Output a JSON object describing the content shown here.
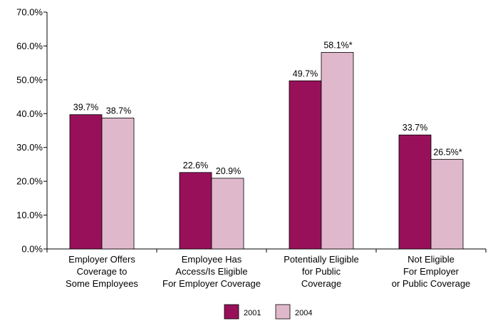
{
  "chart_data": {
    "type": "bar",
    "title": "",
    "xlabel": "",
    "ylabel": "",
    "ylim": [
      0,
      70
    ],
    "yticks": [
      0,
      10,
      20,
      30,
      40,
      50,
      60,
      70
    ],
    "ytick_labels": [
      "0.0%",
      "10.0%",
      "20.0%",
      "30.0%",
      "40.0%",
      "50.0%",
      "60.0%",
      "70.0%"
    ],
    "grid": false,
    "legend_position": "bottom-center",
    "categories": [
      [
        "Employer Offers",
        "Coverage to",
        "Some Employees"
      ],
      [
        "Employee Has",
        "Access/Is Eligible",
        "For Employer Coverage"
      ],
      [
        "Potentially Eligible",
        "for Public",
        "Coverage"
      ],
      [
        "Not Eligible",
        "For Employer",
        "or Public Coverage"
      ]
    ],
    "series": [
      {
        "name": "2001",
        "color": "#99105a",
        "values": [
          39.7,
          22.6,
          49.7,
          33.7
        ],
        "labels": [
          "39.7%",
          "22.6%",
          "49.7%",
          "33.7%"
        ]
      },
      {
        "name": "2004",
        "color": "#e0b8cc",
        "values": [
          38.7,
          20.9,
          58.1,
          26.5
        ],
        "labels": [
          "38.7%",
          "20.9%",
          "58.1%*",
          "26.5%*"
        ]
      }
    ]
  }
}
